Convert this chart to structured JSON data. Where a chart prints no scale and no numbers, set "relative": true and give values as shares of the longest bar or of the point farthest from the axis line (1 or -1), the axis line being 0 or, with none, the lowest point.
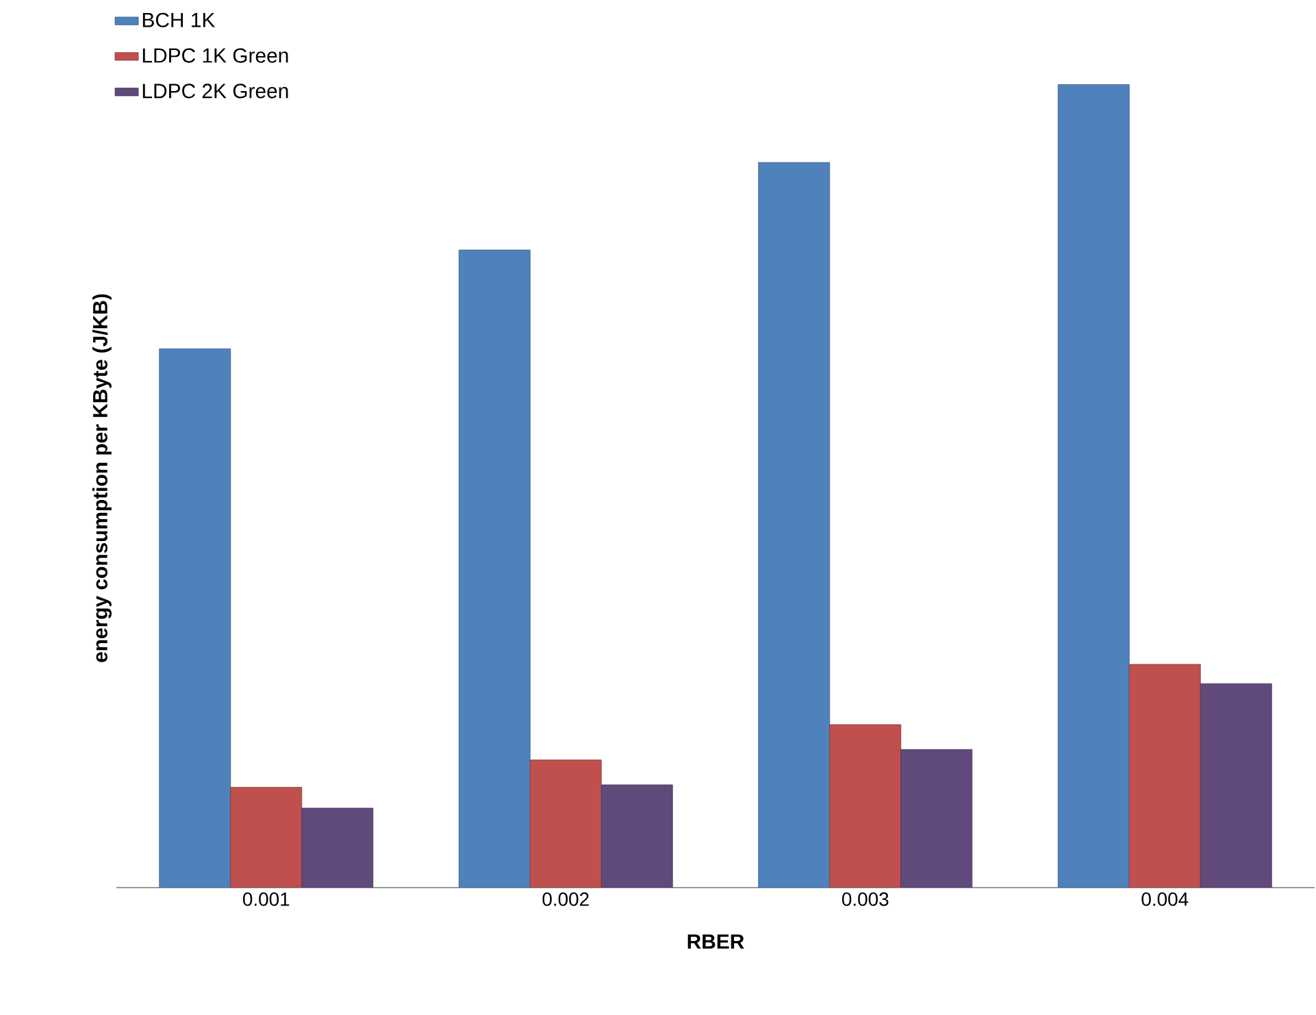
{
  "chart_data": {
    "type": "bar",
    "relative": true,
    "xlabel": "RBER",
    "ylabel": "energy consumption per KByte (J/KB)",
    "categories": [
      "0.001",
      "0.002",
      "0.003",
      "0.004"
    ],
    "series": [
      {
        "name": "BCH 1K",
        "color": "#4f81bd",
        "values": [
          0.671,
          0.794,
          0.903,
          1
        ]
      },
      {
        "name": "LDPC 1K Green",
        "color": "#c0504d",
        "values": [
          0.125,
          0.159,
          0.203,
          0.278
        ]
      },
      {
        "name": "LDPC 2K Green",
        "color": "#604a7b",
        "values": [
          0.099,
          0.128,
          0.172,
          0.254
        ]
      }
    ],
    "legend": "top left"
  }
}
